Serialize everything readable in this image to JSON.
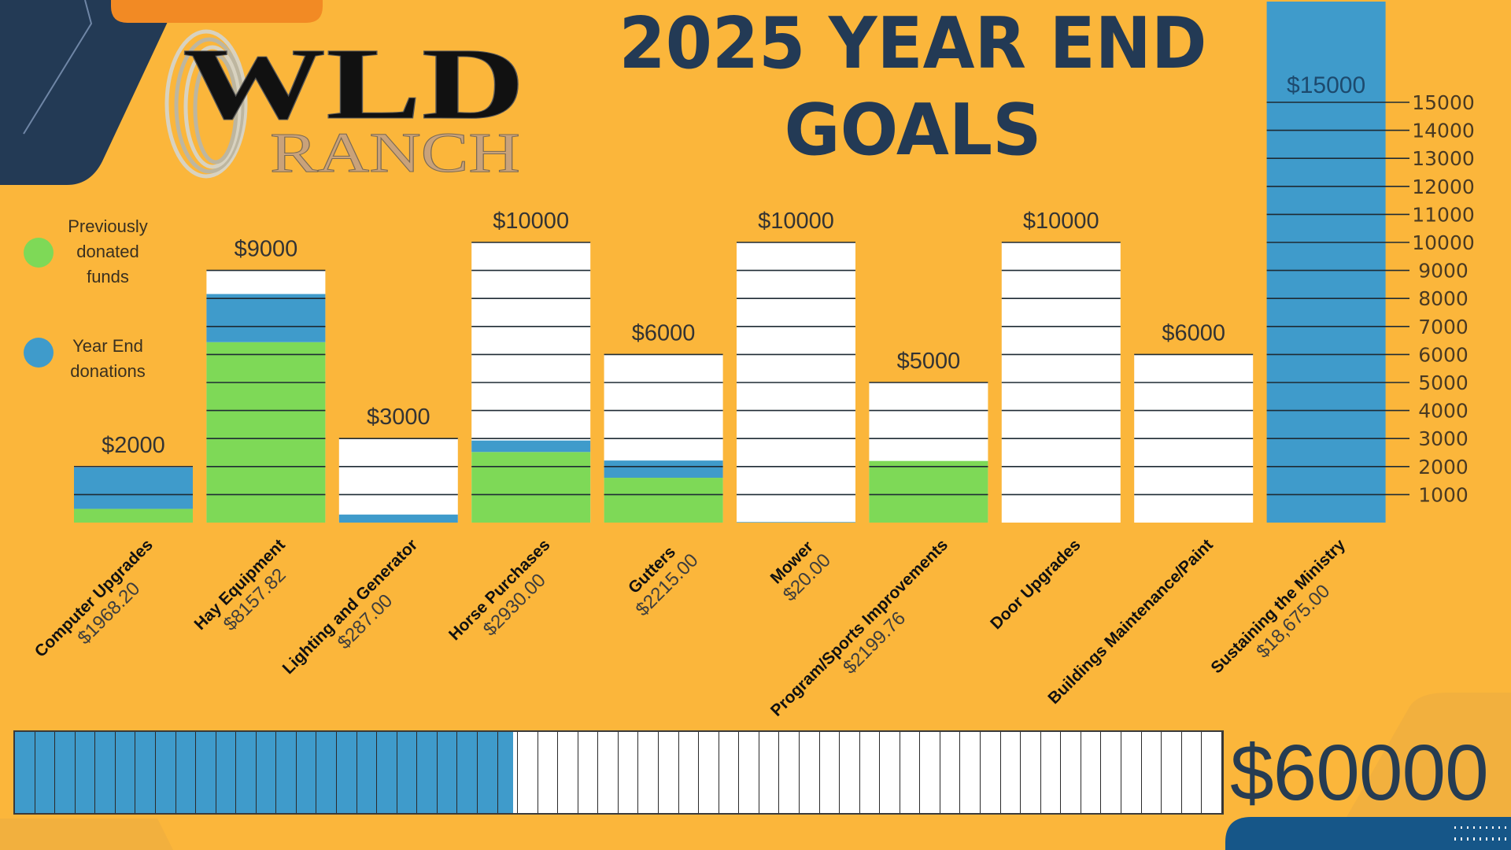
{
  "logo": {
    "line1": "WLD",
    "line2": "RANCH"
  },
  "title": {
    "line1": "2025 YEAR END",
    "line2": "GOALS"
  },
  "legend": [
    {
      "lines": [
        "Previously",
        "donated",
        "funds"
      ],
      "color": "#7ed957"
    },
    {
      "lines": [
        "Year End",
        "donations"
      ],
      "color": "#3f9bcb"
    }
  ],
  "colors": {
    "background": "#fbb63b",
    "previous": "#7ed957",
    "year_end": "#3f9bcb",
    "navy": "#233a55",
    "orange_tab": "#f28a24",
    "bar_empty": "#ffffff"
  },
  "chart_data": {
    "type": "bar",
    "stacked": true,
    "title": "2025 YEAR END GOALS",
    "yaxis": {
      "ticks": [
        "1000",
        "2000",
        "3000",
        "4000",
        "5000",
        "6000",
        "7000",
        "8000",
        "9000",
        "10000",
        "11000",
        "12000",
        "13000",
        "14000",
        "15000"
      ],
      "range": [
        0,
        15000
      ],
      "position": "right"
    },
    "grid": true,
    "legend_placement": "left",
    "series_names": [
      "Previously donated funds",
      "Year End donations"
    ],
    "categories": [
      {
        "name": "Computer Upgrades",
        "amount": "$1968.20",
        "goal_label": "$2000",
        "goal": 2000,
        "total": 1968.2,
        "previous": 490
      },
      {
        "name": "Hay Equipment",
        "amount": "$8157.82",
        "goal_label": "$9000",
        "goal": 9000,
        "total": 8157.82,
        "previous": 6440
      },
      {
        "name": "Lighting and Generator",
        "amount": "$287.00",
        "goal_label": "$3000",
        "goal": 3000,
        "total": 287.0,
        "previous": 0
      },
      {
        "name": "Horse Purchases",
        "amount": "$2930.00",
        "goal_label": "$10000",
        "goal": 10000,
        "total": 2930.0,
        "previous": 2520
      },
      {
        "name": "Gutters",
        "amount": "$2215.00",
        "goal_label": "$6000",
        "goal": 6000,
        "total": 2215.0,
        "previous": 1600
      },
      {
        "name": "Mower",
        "amount": "$20.00",
        "goal_label": "$10000",
        "goal": 10000,
        "total": 20.0,
        "previous": 0
      },
      {
        "name": "Program/Sports Improvements",
        "amount": "$2199.76",
        "goal_label": "$5000",
        "goal": 5000,
        "total": 2199.76,
        "previous": 2199.76
      },
      {
        "name": "Door Upgrades",
        "amount": "",
        "goal_label": "$10000",
        "goal": 10000,
        "total": 0,
        "previous": 0
      },
      {
        "name": "Buildings Maintenance/Paint",
        "amount": "",
        "goal_label": "$6000",
        "goal": 6000,
        "total": 0,
        "previous": 0
      },
      {
        "name": "Sustaining the Ministry",
        "amount": "$18,675.00",
        "goal_label": "$15000",
        "goal": 15000,
        "total": 18675.0,
        "previous": 0
      }
    ]
  },
  "progress": {
    "total_label": "$60000",
    "goal": 60000,
    "cells": 60,
    "fraction": 0.4125
  }
}
